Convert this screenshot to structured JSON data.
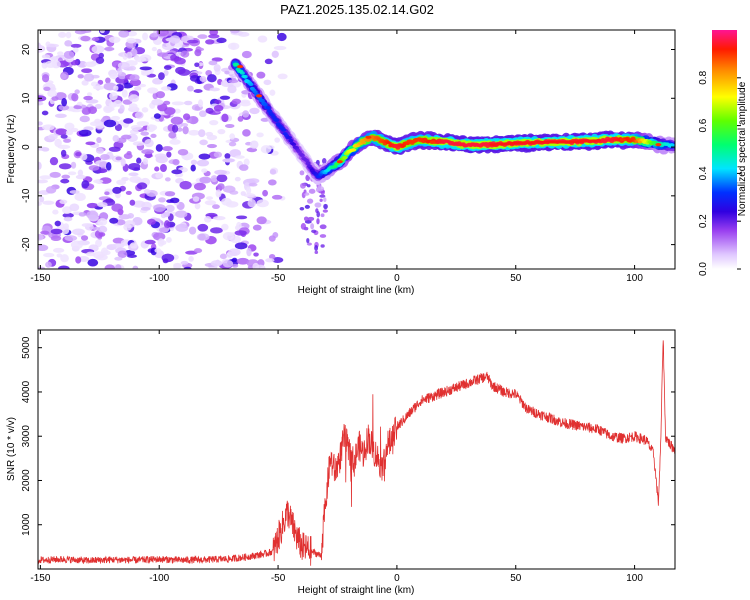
{
  "title": "PAZ1.2025.135.02.14.G02",
  "chart_data": [
    {
      "type": "heatmap",
      "xlabel": "Height of straight line (km)",
      "ylabel": "Frequency (Hz)",
      "xlim": [
        -151,
        117
      ],
      "ylim": [
        -25,
        24
      ],
      "xticks": [
        -150,
        -100,
        -50,
        0,
        50,
        100
      ],
      "yticks": [
        -20,
        -10,
        0,
        10,
        20
      ],
      "colorbar": {
        "label": "Normalized spectral amplitude",
        "range": [
          0,
          1
        ],
        "ticks": [
          0.0,
          0.2,
          0.4,
          0.6,
          0.8
        ],
        "colormap": [
          "#ffffff",
          "#d9b3ff",
          "#8a2be2",
          "#4b00d9",
          "#0000ff",
          "#00e5ff",
          "#00ff66",
          "#7fff00",
          "#ffff00",
          "#ff8c00",
          "#ff0000",
          "#ff1493"
        ]
      },
      "ridge": {
        "x": [
          -68,
          -65,
          -62,
          -59,
          -56,
          -53,
          -50,
          -47,
          -44,
          -41,
          -38,
          -35,
          -33,
          -30,
          -27,
          -24,
          -20,
          -15,
          -10,
          -5,
          0,
          5,
          10,
          20,
          30,
          40,
          50,
          60,
          70,
          80,
          90,
          100,
          110,
          117
        ],
        "freq": [
          17,
          15,
          13,
          11,
          9,
          7,
          5,
          3,
          1,
          -1,
          -3,
          -5,
          -6,
          -5,
          -4,
          -3,
          -1,
          1,
          2,
          1,
          0,
          1,
          1.5,
          1,
          0.5,
          0.5,
          0.8,
          1,
          1,
          1.2,
          1.5,
          1.5,
          0.5,
          0.3
        ],
        "amplitude": [
          0.5,
          0.45,
          0.4,
          0.35,
          0.35,
          0.3,
          0.3,
          0.3,
          0.25,
          0.2,
          0.2,
          0.25,
          0.3,
          0.4,
          0.5,
          0.6,
          0.7,
          0.8,
          0.85,
          0.9,
          0.95,
          0.9,
          0.9,
          0.95,
          0.95,
          0.95,
          0.95,
          0.95,
          0.95,
          0.95,
          0.95,
          0.9,
          0.5,
          0.4
        ]
      },
      "noise_region_x": [
        -151,
        -60
      ]
    },
    {
      "type": "line",
      "xlabel": "Height of straight line (km)",
      "ylabel": "SNR (10 * v/v)",
      "xlim": [
        -151,
        117
      ],
      "ylim": [
        0,
        5400
      ],
      "xticks": [
        -150,
        -100,
        -50,
        0,
        50,
        100
      ],
      "yticks": [
        1000,
        2000,
        3000,
        4000,
        5000
      ],
      "color": "#e03030",
      "x": [
        -151,
        -140,
        -130,
        -120,
        -110,
        -100,
        -90,
        -80,
        -70,
        -65,
        -60,
        -55,
        -52,
        -50,
        -48,
        -46,
        -44,
        -42,
        -40,
        -38,
        -36,
        -34,
        -32,
        -30,
        -28,
        -26,
        -24,
        -22,
        -20,
        -18,
        -16,
        -14,
        -12,
        -10,
        -8,
        -6,
        -4,
        -2,
        0,
        5,
        10,
        15,
        20,
        25,
        30,
        35,
        38,
        40,
        45,
        50,
        55,
        60,
        65,
        70,
        75,
        80,
        85,
        90,
        95,
        100,
        105,
        108,
        110,
        111,
        112,
        113,
        115,
        117
      ],
      "y": [
        200,
        220,
        190,
        210,
        200,
        220,
        200,
        210,
        230,
        260,
        300,
        350,
        400,
        700,
        1000,
        1300,
        1000,
        700,
        500,
        450,
        400,
        350,
        300,
        1500,
        2500,
        2200,
        2500,
        3000,
        2600,
        2400,
        2800,
        2600,
        3000,
        2700,
        2500,
        2300,
        2800,
        2900,
        3200,
        3500,
        3800,
        3900,
        4000,
        4100,
        4200,
        4300,
        4350,
        4150,
        4000,
        3950,
        3600,
        3500,
        3400,
        3300,
        3250,
        3200,
        3150,
        3000,
        2950,
        3000,
        2900,
        2600,
        1500,
        2800,
        5300,
        3000,
        2800,
        2700
      ]
    }
  ]
}
